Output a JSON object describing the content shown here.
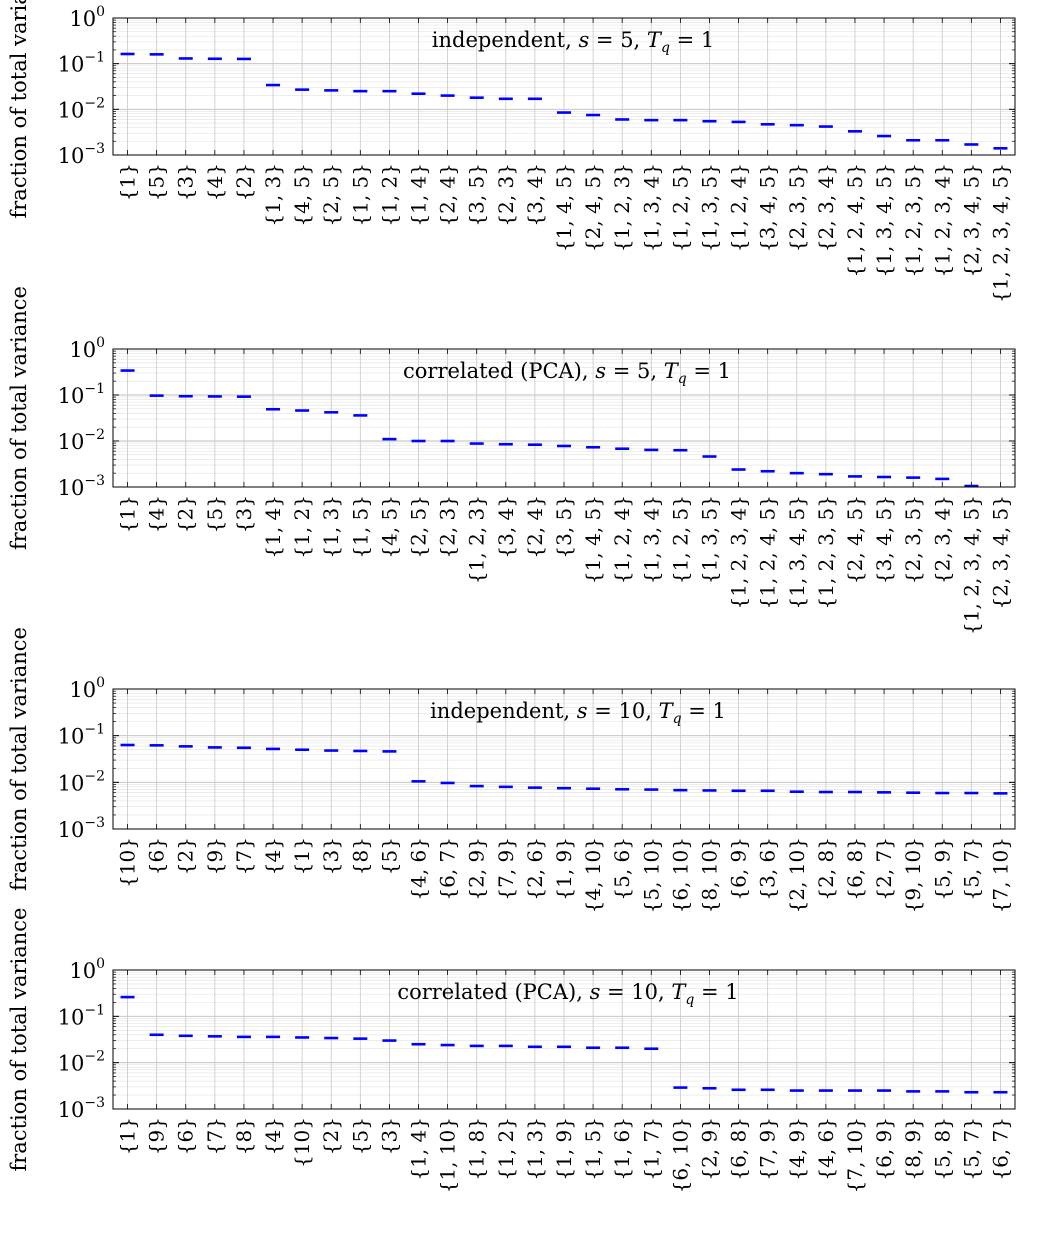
{
  "chart_data": [
    {
      "type": "scatter",
      "title": "independent, s = 5, T_q = 1",
      "ylabel": "fraction of total variance",
      "yscale": "log",
      "ylim": [
        0.001,
        1
      ],
      "yticks": [
        "10^0",
        "10^-1",
        "10^-2",
        "10^-3"
      ],
      "grid": true,
      "marker": "dash",
      "color": "#0000ff",
      "categories": [
        "{1}",
        "{5}",
        "{3}",
        "{4}",
        "{2}",
        "{1,3}",
        "{4,5}",
        "{2,5}",
        "{1,5}",
        "{1,2}",
        "{1,4}",
        "{2,4}",
        "{3,5}",
        "{2,3}",
        "{3,4}",
        "{1,4,5}",
        "{2,4,5}",
        "{1,2,3}",
        "{1,3,4}",
        "{1,2,5}",
        "{1,3,5}",
        "{1,2,4}",
        "{3,4,5}",
        "{2,3,5}",
        "{2,3,4}",
        "{1,2,4,5}",
        "{1,3,4,5}",
        "{1,2,3,5}",
        "{1,2,3,4}",
        "{2,3,4,5}",
        "{1,2,3,4,5}"
      ],
      "values": [
        0.163,
        0.16,
        0.13,
        0.128,
        0.127,
        0.034,
        0.027,
        0.026,
        0.025,
        0.025,
        0.022,
        0.02,
        0.018,
        0.017,
        0.017,
        0.0085,
        0.0075,
        0.006,
        0.0058,
        0.0058,
        0.0055,
        0.0053,
        0.0047,
        0.0045,
        0.0042,
        0.0033,
        0.0026,
        0.0021,
        0.0021,
        0.0017,
        0.0014
      ]
    },
    {
      "type": "scatter",
      "title": "correlated (PCA), s = 5, T_q = 1",
      "ylabel": "fraction of total variance",
      "yscale": "log",
      "ylim": [
        0.001,
        1
      ],
      "yticks": [
        "10^0",
        "10^-1",
        "10^-2",
        "10^-3"
      ],
      "grid": true,
      "marker": "dash",
      "color": "#0000ff",
      "categories": [
        "{1}",
        "{4}",
        "{2}",
        "{5}",
        "{3}",
        "{1,4}",
        "{1,2}",
        "{1,3}",
        "{1,5}",
        "{4,5}",
        "{2,5}",
        "{2,3}",
        "{1,2,3}",
        "{3,4}",
        "{2,4}",
        "{3,5}",
        "{1,4,5}",
        "{1,2,4}",
        "{1,3,4}",
        "{1,2,5}",
        "{1,3,5}",
        "{1,2,3,4}",
        "{1,2,4,5}",
        "{1,3,4,5}",
        "{1,2,3,5}",
        "{2,4,5}",
        "{3,4,5}",
        "{2,3,5}",
        "{2,3,4}",
        "{1,2,3,4,5}",
        "{2,3,4,5}"
      ],
      "values": [
        0.34,
        0.097,
        0.094,
        0.093,
        0.092,
        0.049,
        0.046,
        0.042,
        0.036,
        0.011,
        0.01,
        0.01,
        0.0088,
        0.0085,
        0.0083,
        0.0078,
        0.0073,
        0.0068,
        0.0064,
        0.0063,
        0.0046,
        0.0024,
        0.0022,
        0.002,
        0.0019,
        0.0017,
        0.00165,
        0.0016,
        0.0015,
        0.00105,
        0.0009
      ]
    },
    {
      "type": "scatter",
      "title": "independent, s = 10, T_q = 1",
      "ylabel": "fraction of total variance",
      "yscale": "log",
      "ylim": [
        0.001,
        1
      ],
      "yticks": [
        "10^0",
        "10^-1",
        "10^-2",
        "10^-3"
      ],
      "grid": true,
      "marker": "dash",
      "color": "#0000ff",
      "categories": [
        "{10}",
        "{6}",
        "{2}",
        "{9}",
        "{7}",
        "{4}",
        "{1}",
        "{3}",
        "{8}",
        "{5}",
        "{4,6}",
        "{6,7}",
        "{2,9}",
        "{7,9}",
        "{2,6}",
        "{1,9}",
        "{4,10}",
        "{5,6}",
        "{5,10}",
        "{6,10}",
        "{8,10}",
        "{6,9}",
        "{3,6}",
        "{2,10}",
        "{2,8}",
        "{6,8}",
        "{2,7}",
        "{9,10}",
        "{5,9}",
        "{5,7}",
        "{7,10}"
      ],
      "values": [
        0.063,
        0.062,
        0.059,
        0.056,
        0.055,
        0.052,
        0.05,
        0.048,
        0.047,
        0.046,
        0.0105,
        0.0097,
        0.0083,
        0.008,
        0.0077,
        0.0075,
        0.0073,
        0.0071,
        0.007,
        0.0068,
        0.0067,
        0.0066,
        0.0066,
        0.0063,
        0.0062,
        0.0062,
        0.0061,
        0.006,
        0.0059,
        0.0059,
        0.0058
      ]
    },
    {
      "type": "scatter",
      "title": "correlated (PCA), s = 10, T_q = 1",
      "ylabel": "fraction of total variance",
      "yscale": "log",
      "ylim": [
        0.001,
        1
      ],
      "yticks": [
        "10^0",
        "10^-1",
        "10^-2",
        "10^-3"
      ],
      "grid": true,
      "marker": "dash",
      "color": "#0000ff",
      "categories": [
        "{1}",
        "{9}",
        "{6}",
        "{7}",
        "{8}",
        "{4}",
        "{10}",
        "{2}",
        "{5}",
        "{3}",
        "{1,4}",
        "{1,10}",
        "{1,8}",
        "{1,2}",
        "{1,3}",
        "{1,9}",
        "{1,5}",
        "{1,6}",
        "{1,7}",
        "{6,10}",
        "{2,9}",
        "{6,8}",
        "{7,9}",
        "{4,9}",
        "{4,6}",
        "{7,10}",
        "{6,9}",
        "{8,9}",
        "{5,8}",
        "{5,7}",
        "{6,7}"
      ],
      "values": [
        0.26,
        0.04,
        0.038,
        0.037,
        0.036,
        0.036,
        0.035,
        0.034,
        0.033,
        0.03,
        0.025,
        0.024,
        0.023,
        0.023,
        0.022,
        0.022,
        0.021,
        0.021,
        0.02,
        0.0029,
        0.0028,
        0.0026,
        0.0026,
        0.0025,
        0.0025,
        0.0025,
        0.0025,
        0.0024,
        0.0024,
        0.0023,
        0.0023
      ]
    }
  ]
}
